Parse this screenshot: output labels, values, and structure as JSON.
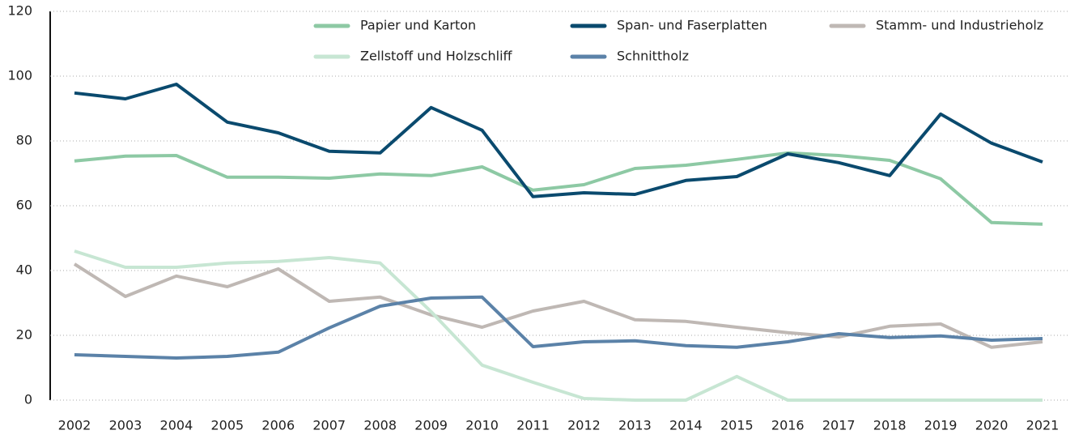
{
  "chart_data": {
    "type": "line",
    "categories": [
      "2002",
      "2003",
      "2004",
      "2005",
      "2006",
      "2007",
      "2008",
      "2009",
      "2010",
      "2011",
      "2012",
      "2013",
      "2014",
      "2015",
      "2016",
      "2017",
      "2018",
      "2019",
      "2020",
      "2021"
    ],
    "series": [
      {
        "name": "Papier und Karton",
        "color": "#8dc9a4",
        "values": [
          73.8,
          75.3,
          75.5,
          68.8,
          68.8,
          68.5,
          69.8,
          69.3,
          72,
          64.8,
          66.5,
          71.5,
          72.5,
          74.3,
          76.3,
          75.5,
          74,
          68.3,
          54.8,
          54.3
        ]
      },
      {
        "name": "Span- und Faserplatten",
        "color": "#0a4a6e",
        "values": [
          94.8,
          93,
          97.5,
          85.8,
          82.5,
          76.8,
          76.3,
          90.3,
          83.3,
          62.8,
          64,
          63.5,
          67.8,
          69,
          76,
          73.3,
          69.3,
          88.3,
          79.3,
          73.5
        ]
      },
      {
        "name": "Stamm- und Industrieholz",
        "color": "#bfb8b4",
        "values": [
          42,
          32,
          38.3,
          35,
          40.5,
          30.5,
          31.8,
          26.3,
          22.5,
          27.5,
          30.5,
          24.8,
          24.3,
          22.5,
          20.8,
          19.5,
          22.8,
          23.5,
          16.3,
          18
        ]
      },
      {
        "name": "Zellstoff und Holzschliff",
        "color": "#c7e6d3",
        "values": [
          46,
          41,
          41,
          42.3,
          42.8,
          44,
          42.3,
          27.3,
          10.8,
          5.5,
          0.5,
          0,
          0,
          7.3,
          0,
          0,
          0,
          0,
          0,
          0
        ]
      },
      {
        "name": "Schnittholz",
        "color": "#5b82a8",
        "values": [
          14,
          13.5,
          13,
          13.5,
          14.8,
          22.3,
          29,
          31.5,
          31.8,
          16.5,
          18,
          18.3,
          16.8,
          16.3,
          18,
          20.5,
          19.3,
          19.8,
          18.5,
          19
        ]
      }
    ],
    "ylim": [
      0,
      120
    ],
    "yticks": [
      0,
      20,
      40,
      60,
      80,
      100,
      120
    ],
    "grid": true
  }
}
